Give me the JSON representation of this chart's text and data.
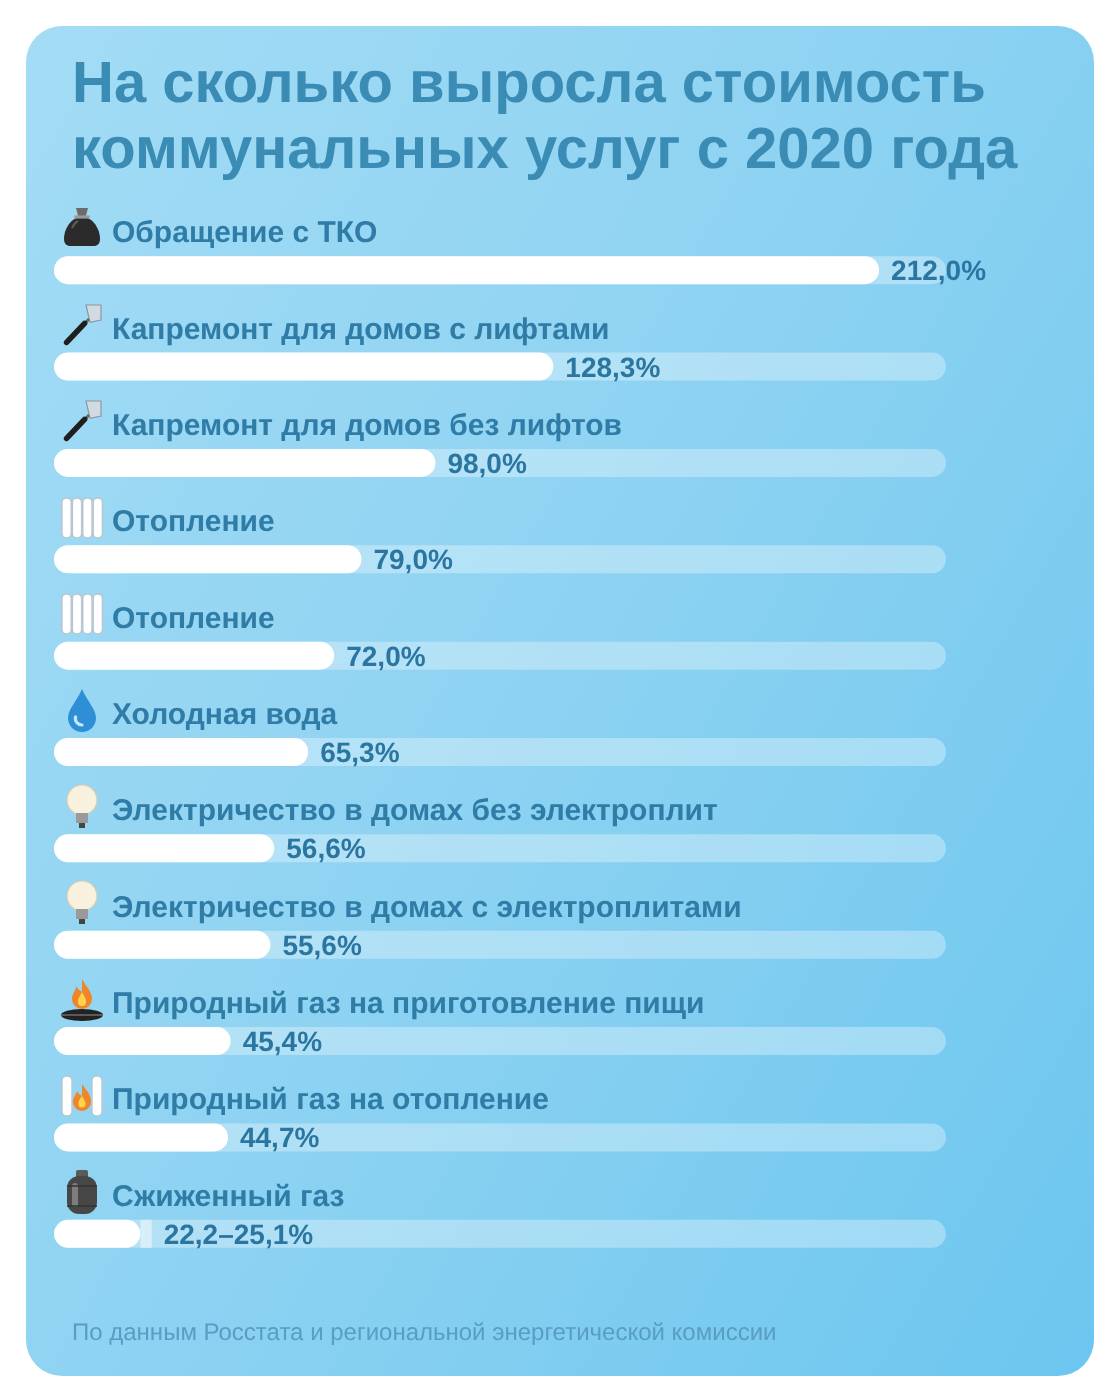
{
  "chart_data": {
    "type": "bar",
    "orientation": "horizontal",
    "stacked": true,
    "title": "На сколько выросла стоимость коммунальных услуг с 2020 года",
    "categories": [
      "Обращение с ТКО",
      "Капремонт для домов с лифтами",
      "Капремонт для домов без лифтов",
      "Отопление",
      "Отопление",
      "Холодная вода",
      "Электричество в домах без электроплит",
      "Электричество в домах с электроплитами",
      "Природный газ на приготовление пищи",
      "Природный газ на отопление",
      "Сжиженный газ"
    ],
    "series": [
      {
        "color": "#ffffff",
        "values": [
          212.0,
          128.3,
          98.0,
          79.0,
          72.0,
          65.3,
          56.6,
          55.6,
          45.4,
          44.7,
          22.2
        ],
        "value_labels": [
          "212,0%",
          "128,3%",
          "98,0%",
          "79,0%",
          "72,0%",
          "65,3%",
          "56,6%",
          "55,6%",
          "45,4%",
          "44,7%",
          "22,2–25,1%"
        ]
      },
      {
        "color": "#d8effa",
        "values": [
          null,
          null,
          null,
          null,
          null,
          null,
          null,
          null,
          null,
          null,
          2.9
        ]
      }
    ],
    "annotations": [
      "По данным Росстата и региональной энергетической комиссии"
    ]
  }
}
